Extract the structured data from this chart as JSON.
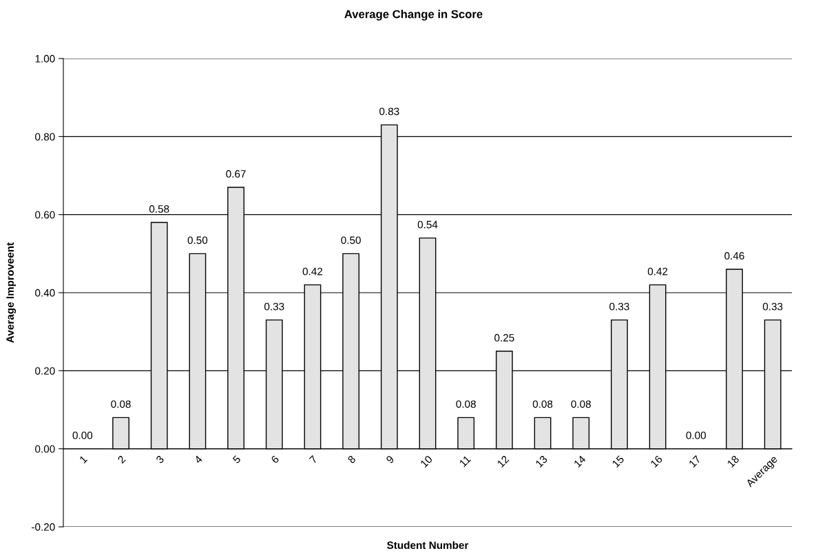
{
  "chart_data": {
    "type": "bar",
    "title": "Average Change in Score",
    "xlabel": "Student Number",
    "ylabel": "Average Improveent",
    "categories": [
      "1",
      "2",
      "3",
      "4",
      "5",
      "6",
      "7",
      "8",
      "9",
      "10",
      "11",
      "12",
      "13",
      "14",
      "15",
      "16",
      "17",
      "18",
      "Average"
    ],
    "values": [
      0.0,
      0.08,
      0.58,
      0.5,
      0.67,
      0.33,
      0.42,
      0.5,
      0.83,
      0.54,
      0.08,
      0.25,
      0.08,
      0.08,
      0.33,
      0.42,
      0.0,
      0.46,
      0.33
    ],
    "value_labels": [
      "0.00",
      "0.08",
      "0.58",
      "0.50",
      "0.67",
      "0.33",
      "0.42",
      "0.50",
      "0.83",
      "0.54",
      "0.08",
      "0.25",
      "0.08",
      "0.08",
      "0.33",
      "0.42",
      "0.00",
      "0.46",
      "0.33"
    ],
    "color": "#e3e3e3",
    "ylim": [
      -0.2,
      1.0
    ],
    "yticks": [
      {
        "value": -0.2,
        "label": "-0.20"
      },
      {
        "value": 0,
        "label": "0.00"
      },
      {
        "value": 0.2,
        "label": "0.20"
      },
      {
        "value": 0.4,
        "label": "0.40"
      },
      {
        "value": 0.6,
        "label": "0.60"
      },
      {
        "value": 0.8,
        "label": "0.80"
      },
      {
        "value": 1.0,
        "label": "1.00"
      }
    ],
    "grid": "y"
  }
}
